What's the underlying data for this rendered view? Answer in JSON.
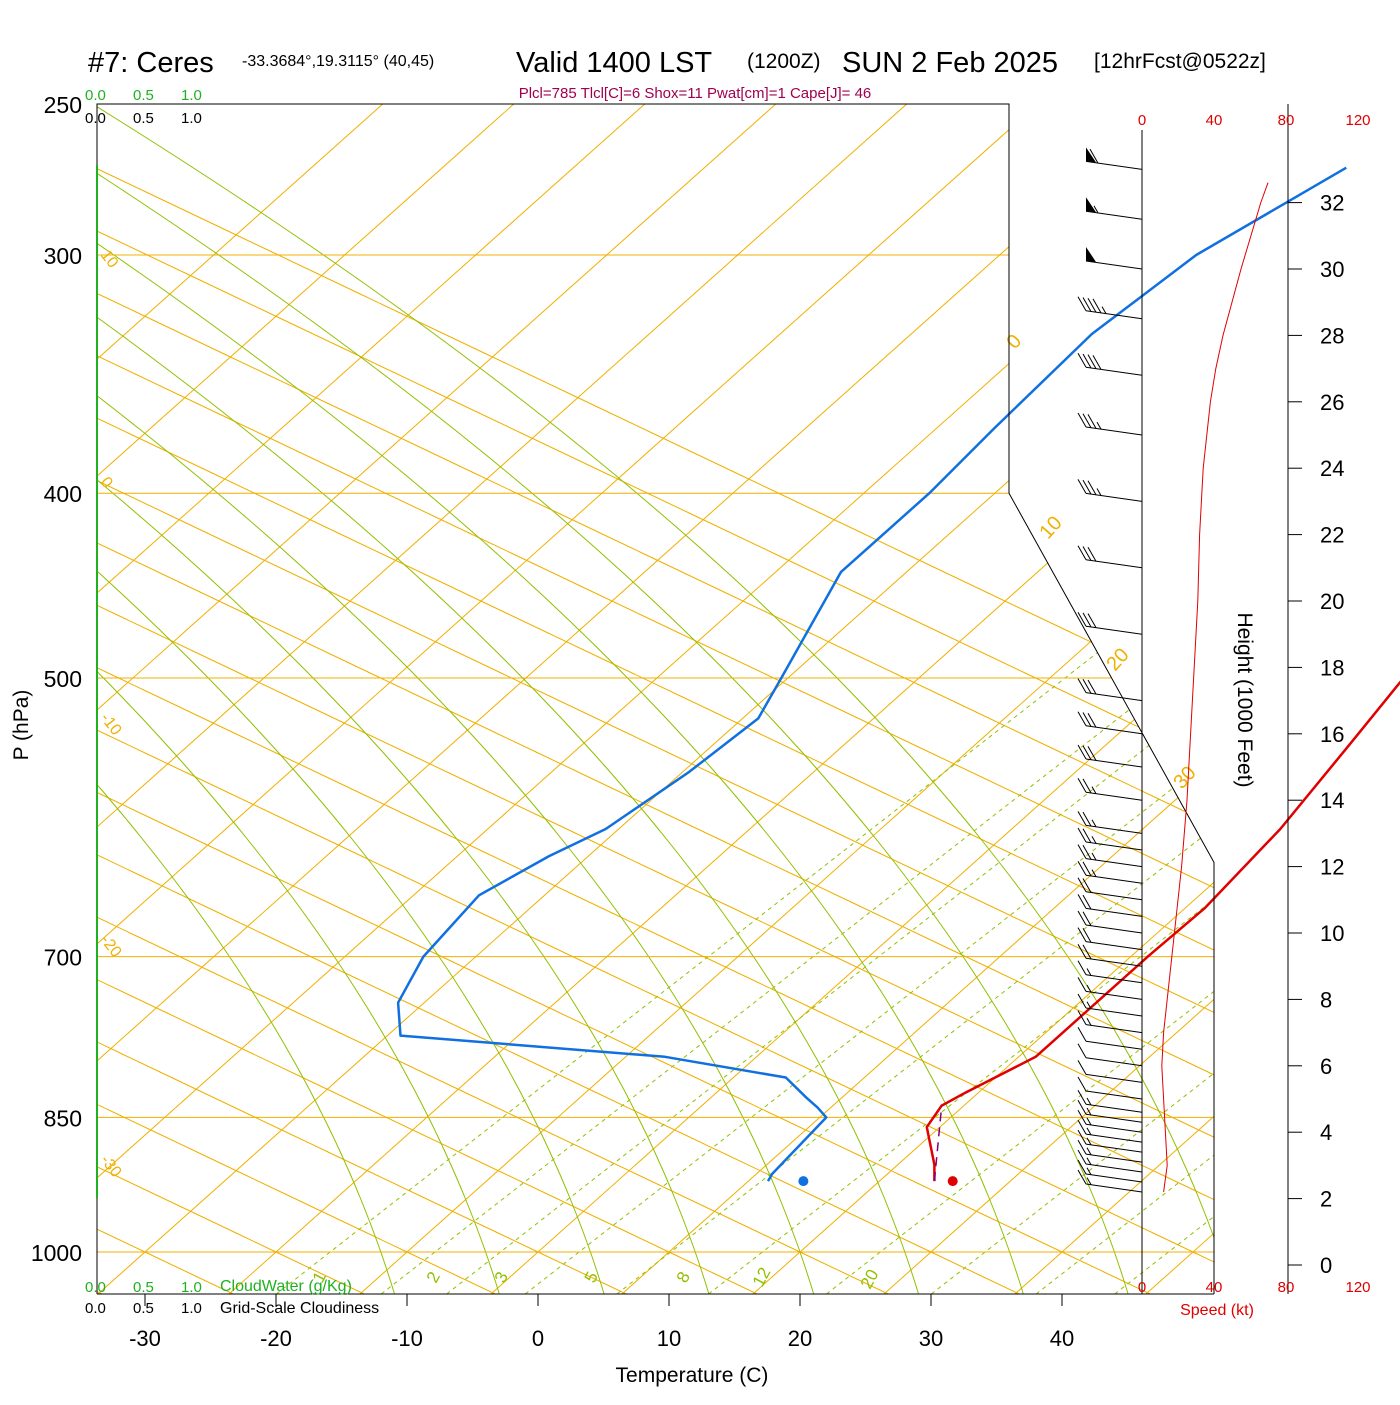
{
  "header": {
    "station": "#7: Ceres",
    "coords": "-33.3684°,19.3115° (40,45)",
    "valid": "Valid 1400 LST",
    "zulu": "(1200Z)",
    "date": "SUN 2 Feb 2025",
    "forecast": "[12hrFcst@0522z]",
    "indices": "Plcl=785 Tlcl[C]=6 Shox=11 Pwat[cm]=1 Cape[J]= 46"
  },
  "scales": {
    "cloudwater_ticks": [
      "0.0",
      "0.5",
      "1.0"
    ],
    "cloudiness_ticks": [
      "0.0",
      "0.5",
      "1.0"
    ],
    "cloudwater_label": "CloudWater (g/Kg)",
    "cloudiness_label": "Grid-Scale Cloudiness",
    "speed_ticks": [
      "0",
      "40",
      "80",
      "120"
    ],
    "speed_label": "Speed (kt)"
  },
  "colors": {
    "isotherm": "#f0b000",
    "adiabat": "#90c000",
    "temperature": "#e00000",
    "dewpoint": "#1070e0",
    "parcel": "#800080",
    "cloudwater": "#20b020",
    "indices": "#a00050",
    "speed": "#e00000"
  },
  "chart_data": {
    "type": "line",
    "xlabel": "Temperature (C)",
    "ylabel": "P (hPa)",
    "y2label": "Height (1000 Feet)",
    "x_ticks": [
      -30,
      -20,
      -10,
      0,
      10,
      20,
      30,
      40
    ],
    "xlim": [
      -34,
      46
    ],
    "pressure_ticks": [
      250,
      300,
      400,
      500,
      700,
      850,
      1000
    ],
    "ylim": [
      1000,
      250
    ],
    "height_ticks": [
      0,
      2,
      4,
      6,
      8,
      10,
      12,
      14,
      16,
      18,
      20,
      22,
      24,
      26,
      28,
      30,
      32
    ],
    "isotherm_labels": [
      "30",
      "20",
      "10",
      "0",
      "-10",
      "-20",
      "-30"
    ],
    "mixing_ratio_labels": [
      "1",
      "2",
      "3",
      "5",
      "8",
      "12",
      "20"
    ],
    "temperature_profile": {
      "name": "Temperature",
      "p": [
        918,
        900,
        860,
        838,
        825,
        790,
        700,
        660,
        600,
        540,
        500,
        450,
        400,
        370,
        340,
        300,
        270
      ],
      "t": [
        24.2,
        22.8,
        19.0,
        18.3,
        19.0,
        21.3,
        21.3,
        21.5,
        20.5,
        18.5,
        17.0,
        13.5,
        9.0,
        5.6,
        2.0,
        -3.6,
        -6.8
      ]
    },
    "dewpoint_profile": {
      "name": "Dewpoint",
      "p": [
        918,
        910,
        850,
        840,
        830,
        810,
        790,
        770,
        740,
        700,
        650,
        620,
        600,
        560,
        525,
        500,
        440,
        400,
        370,
        330,
        300,
        270
      ],
      "t": [
        11.5,
        11.2,
        10.5,
        9.0,
        7.3,
        4.0,
        -7.0,
        -29.0,
        -32.0,
        -34.0,
        -35.0,
        -33.0,
        -31.0,
        -29.5,
        -28.8,
        -30.5,
        -35.0,
        -35.0,
        -35.6,
        -36.2,
        -35.0,
        -31.0
      ]
    },
    "parcel_path": {
      "name": "Parcel",
      "p": [
        918,
        838
      ],
      "t": [
        24.2,
        18.3
      ]
    },
    "surface_temperature": 25.6,
    "surface_dewpoint": 14.2,
    "surface_pressure": 918,
    "wind_speed_profile": {
      "name": "Speed",
      "height_kft": [
        2.2,
        3.0,
        4.0,
        5.0,
        6.0,
        7.0,
        8.0,
        9.0,
        10.0,
        12.0,
        14.0,
        16.0,
        18.0,
        20.0,
        22.0,
        24.0,
        26.0,
        27.0,
        28.0,
        30.0,
        32.0,
        32.6
      ],
      "speed_kt": [
        12,
        14,
        13,
        12,
        11,
        12,
        14,
        16,
        18,
        22,
        25,
        27,
        29,
        31,
        32,
        34,
        38,
        41,
        45,
        55,
        66,
        70
      ]
    },
    "wind_barbs": {
      "height_kft": [
        2.2,
        2.5,
        2.8,
        3.1,
        3.4,
        3.7,
        4.0,
        4.3,
        4.6,
        5.0,
        5.5,
        6.0,
        6.5,
        7.0,
        7.5,
        8.0,
        8.5,
        9.0,
        9.5,
        10.0,
        10.5,
        11.0,
        11.5,
        12.0,
        12.5,
        13.0,
        14.0,
        15.0,
        16.0,
        17.0,
        19.0,
        21.0,
        23.0,
        25.0,
        26.8,
        28.5,
        30.0,
        31.5,
        33.0
      ],
      "speed_kt": [
        15,
        15,
        15,
        15,
        15,
        15,
        15,
        15,
        15,
        10,
        10,
        10,
        10,
        15,
        15,
        15,
        15,
        20,
        20,
        20,
        20,
        20,
        25,
        25,
        25,
        25,
        25,
        30,
        30,
        30,
        30,
        30,
        35,
        35,
        40,
        45,
        50,
        55,
        60
      ]
    }
  }
}
